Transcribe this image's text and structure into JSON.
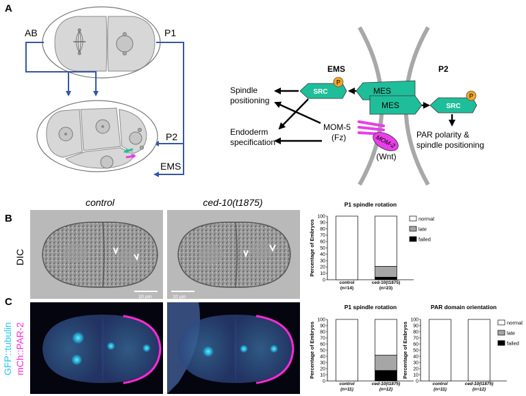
{
  "panels": {
    "a": "A",
    "b": "B",
    "c": "C"
  },
  "schematic": {
    "cell_ab": "AB",
    "cell_p1": "P1",
    "cell_p2": "P2",
    "cell_ems": "EMS",
    "pathway_ems": "EMS",
    "pathway_p2": "P2",
    "mes_top": "MES",
    "mes_bottom": "MES",
    "src_left": "SRC",
    "src_right": "SRC",
    "p_left": "P",
    "p_right": "P",
    "spindle_positioning_line1": "Spindle",
    "spindle_positioning_line2": "positioning",
    "endoderm_line1": "Endoderm",
    "endoderm_line2": "specification",
    "mom5_line1": "MOM-5",
    "mom5_line2": "(Fz)",
    "mom2": "MOM-2",
    "wnt": "(Wnt)",
    "par_line1": "PAR polarity &",
    "par_line2": "spindle positioning"
  },
  "micrographs": {
    "control_label": "control",
    "mutant_label": "ced-10(t1875)",
    "dic_label": "DIC",
    "fluor_label_1": "GFP::tubulin",
    "fluor_label_2": "mCh::PAR-2",
    "scale_1": "10 µm",
    "scale_2": "10 µm"
  },
  "colors": {
    "arrow_blue": "#3355a6",
    "src_green": "#1fbe9a",
    "phospho_orange": "#f5a623",
    "mom2_magenta": "#e83ee8",
    "membrane_gray": "#a8a8a8",
    "cyan": "#1ec8f0",
    "magenta": "#ff2ad4"
  },
  "chart_data": [
    {
      "type": "bar",
      "stacked": true,
      "title": "P1 spindle rotation",
      "ylabel": "Percentage of Embryos",
      "ylim": [
        0,
        100
      ],
      "yticks": [
        "0",
        "10",
        "20",
        "30",
        "40",
        "50",
        "60",
        "70",
        "80",
        "90",
        "100"
      ],
      "categories": [
        "control",
        "ced-10(t1875)"
      ],
      "category_n": [
        "(n=14)",
        "(n=23)"
      ],
      "series": [
        {
          "name": "failed",
          "color": "#000000",
          "values": [
            0,
            4
          ]
        },
        {
          "name": "late",
          "color": "#a6a6a6",
          "values": [
            0,
            17
          ]
        },
        {
          "name": "normal",
          "color": "#ffffff",
          "values": [
            100,
            79
          ]
        }
      ],
      "legend": [
        "normal",
        "late",
        "failed"
      ],
      "legend_position": "right"
    },
    {
      "type": "bar",
      "stacked": true,
      "title": "P1 spindle rotation",
      "ylabel": "Percentage of Embryos",
      "ylim": [
        0,
        100
      ],
      "yticks": [
        "0",
        "10",
        "20",
        "30",
        "40",
        "50",
        "60",
        "70",
        "80",
        "90",
        "100"
      ],
      "categories": [
        "control",
        "ced-10(t1875)"
      ],
      "category_n": [
        "(n=11)",
        "(n=12)"
      ],
      "series": [
        {
          "name": "failed",
          "color": "#000000",
          "values": [
            0,
            17
          ]
        },
        {
          "name": "late",
          "color": "#a6a6a6",
          "values": [
            0,
            25
          ]
        },
        {
          "name": "normal",
          "color": "#ffffff",
          "values": [
            100,
            58
          ]
        }
      ],
      "legend": [],
      "legend_position": "none"
    },
    {
      "type": "bar",
      "stacked": true,
      "title": "PAR domain orientation",
      "ylabel": "Percentage of Embryos",
      "ylim": [
        0,
        100
      ],
      "yticks": [
        "0",
        "10",
        "20",
        "30",
        "40",
        "50",
        "60",
        "70",
        "80",
        "90",
        "100"
      ],
      "categories": [
        "control",
        "ced-10(t1875)"
      ],
      "category_n": [
        "(n=11)",
        "(n=12)"
      ],
      "series": [
        {
          "name": "failed",
          "color": "#000000",
          "values": [
            0,
            0
          ]
        },
        {
          "name": "late",
          "color": "#a6a6a6",
          "values": [
            0,
            0
          ]
        },
        {
          "name": "normal",
          "color": "#ffffff",
          "values": [
            100,
            100
          ]
        }
      ],
      "legend": [
        "normal",
        "late",
        "failed"
      ],
      "legend_position": "right"
    }
  ]
}
